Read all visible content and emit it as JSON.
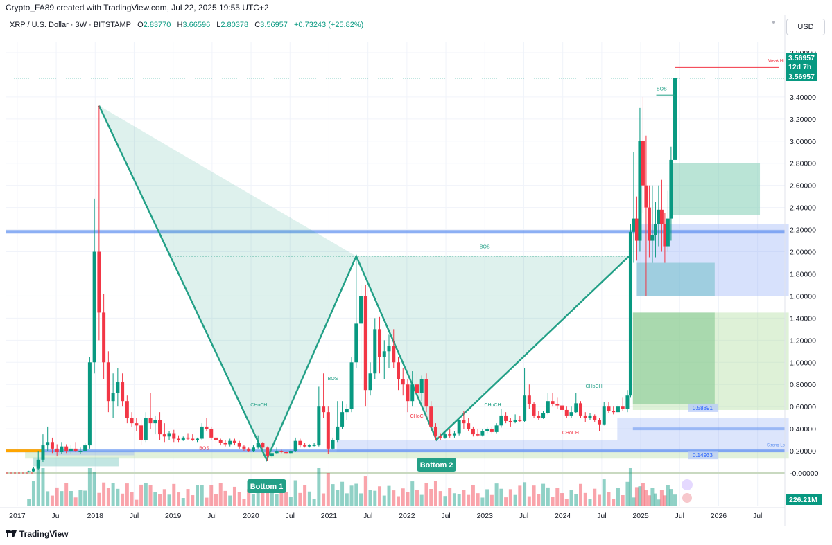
{
  "header": {
    "credit": "Crypto_FA89 created with TradingView.com, Jul 22, 2025 19:55 UTC+2",
    "symbol": "XRP / U.S. Dollar · 3W · BITSTAMP",
    "o_label": "O",
    "o_value": "2.83770",
    "h_label": "H",
    "h_value": "3.66596",
    "l_label": "L",
    "l_value": "2.80378",
    "c_label": "C",
    "c_value": "3.56957",
    "change": "+0.73243 (+25.82%)",
    "currency": "USD"
  },
  "footer": {
    "brand": "TradingView"
  },
  "colors": {
    "up": "#089981",
    "down": "#f23645",
    "bg": "#ffffff",
    "grid": "#f0f3fa",
    "blue_line": "#5b8def",
    "orange": "#ffa500",
    "pattern": "#23a087"
  },
  "chart_data": {
    "type": "candlestick",
    "title": "",
    "xlabel": "",
    "ylabel": "",
    "ylim": [
      -0.05,
      3.85
    ],
    "y_ticks": [
      "3.80000",
      "3.40000",
      "3.20000",
      "3.00000",
      "2.80000",
      "2.60000",
      "2.40000",
      "2.20000",
      "2.00000",
      "1.80000",
      "1.60000",
      "1.40000",
      "1.20000",
      "1.00000",
      "0.80000",
      "0.60000",
      "0.40000",
      "0.20000",
      "-0.00000"
    ],
    "y_tick_values": [
      3.8,
      3.4,
      3.2,
      3.0,
      2.8,
      2.6,
      2.4,
      2.2,
      2.0,
      1.8,
      1.6,
      1.4,
      1.2,
      1.0,
      0.8,
      0.6,
      0.4,
      0.2,
      0.0
    ],
    "x_ticks": [
      "2017",
      "Jul",
      "2018",
      "Jul",
      "2019",
      "Jul",
      "2020",
      "Jul",
      "2021",
      "Jul",
      "2022",
      "Jul",
      "2023",
      "Jul",
      "2024",
      "Jul",
      "2025",
      "Jul",
      "2026",
      "Jul"
    ],
    "x_tick_values": [
      2017.0,
      2017.5,
      2018.0,
      2018.5,
      2019.0,
      2019.5,
      2020.0,
      2020.5,
      2021.0,
      2021.5,
      2022.0,
      2022.5,
      2023.0,
      2023.5,
      2024.0,
      2024.5,
      2025.0,
      2025.5,
      2026.0,
      2026.5
    ],
    "xlim": [
      2016.85,
      2026.85
    ],
    "candles": [
      [
        2017.15,
        0.01,
        0.02,
        0.005,
        0.015
      ],
      [
        2017.21,
        0.015,
        0.05,
        0.01,
        0.04
      ],
      [
        2017.27,
        0.04,
        0.2,
        0.03,
        0.12
      ],
      [
        2017.33,
        0.12,
        0.35,
        0.1,
        0.25
      ],
      [
        2017.39,
        0.25,
        0.42,
        0.2,
        0.28
      ],
      [
        2017.45,
        0.28,
        0.32,
        0.18,
        0.22
      ],
      [
        2017.51,
        0.22,
        0.26,
        0.15,
        0.19
      ],
      [
        2017.57,
        0.19,
        0.28,
        0.17,
        0.24
      ],
      [
        2017.63,
        0.24,
        0.26,
        0.18,
        0.2
      ],
      [
        2017.69,
        0.2,
        0.25,
        0.17,
        0.22
      ],
      [
        2017.75,
        0.22,
        0.28,
        0.19,
        0.2
      ],
      [
        2017.81,
        0.2,
        0.23,
        0.17,
        0.2
      ],
      [
        2017.87,
        0.2,
        0.27,
        0.2,
        0.25
      ],
      [
        2017.93,
        0.25,
        1.05,
        0.22,
        1.0
      ],
      [
        2017.99,
        1.0,
        2.48,
        0.9,
        2.0
      ],
      [
        2018.05,
        2.0,
        3.32,
        1.2,
        1.45
      ],
      [
        2018.11,
        1.45,
        1.62,
        0.85,
        1.0
      ],
      [
        2018.17,
        1.0,
        1.1,
        0.55,
        0.65
      ],
      [
        2018.23,
        0.65,
        0.9,
        0.5,
        0.72
      ],
      [
        2018.29,
        0.72,
        0.95,
        0.6,
        0.82
      ],
      [
        2018.35,
        0.82,
        0.9,
        0.6,
        0.65
      ],
      [
        2018.41,
        0.65,
        0.7,
        0.45,
        0.5
      ],
      [
        2018.47,
        0.5,
        0.55,
        0.42,
        0.45
      ],
      [
        2018.53,
        0.45,
        0.5,
        0.38,
        0.43
      ],
      [
        2018.59,
        0.43,
        0.48,
        0.25,
        0.3
      ],
      [
        2018.65,
        0.3,
        0.55,
        0.28,
        0.5
      ],
      [
        2018.71,
        0.5,
        0.72,
        0.4,
        0.45
      ],
      [
        2018.77,
        0.45,
        0.52,
        0.35,
        0.48
      ],
      [
        2018.83,
        0.48,
        0.55,
        0.3,
        0.35
      ],
      [
        2018.89,
        0.35,
        0.45,
        0.28,
        0.33
      ],
      [
        2018.95,
        0.33,
        0.38,
        0.3,
        0.36
      ],
      [
        2019.01,
        0.36,
        0.39,
        0.28,
        0.31
      ],
      [
        2019.07,
        0.31,
        0.34,
        0.28,
        0.3
      ],
      [
        2019.13,
        0.3,
        0.33,
        0.29,
        0.32
      ],
      [
        2019.19,
        0.32,
        0.36,
        0.3,
        0.31
      ],
      [
        2019.25,
        0.31,
        0.35,
        0.29,
        0.3
      ],
      [
        2019.31,
        0.3,
        0.32,
        0.28,
        0.31
      ],
      [
        2019.37,
        0.31,
        0.45,
        0.3,
        0.42
      ],
      [
        2019.43,
        0.42,
        0.5,
        0.38,
        0.4
      ],
      [
        2019.49,
        0.4,
        0.42,
        0.3,
        0.32
      ],
      [
        2019.55,
        0.32,
        0.34,
        0.28,
        0.3
      ],
      [
        2019.61,
        0.3,
        0.31,
        0.25,
        0.27
      ],
      [
        2019.67,
        0.27,
        0.3,
        0.24,
        0.26
      ],
      [
        2019.73,
        0.26,
        0.31,
        0.24,
        0.29
      ],
      [
        2019.79,
        0.29,
        0.31,
        0.25,
        0.27
      ],
      [
        2019.85,
        0.27,
        0.29,
        0.22,
        0.24
      ],
      [
        2019.91,
        0.24,
        0.25,
        0.2,
        0.22
      ],
      [
        2019.97,
        0.22,
        0.23,
        0.19,
        0.2
      ],
      [
        2020.03,
        0.2,
        0.25,
        0.19,
        0.23
      ],
      [
        2020.09,
        0.23,
        0.34,
        0.22,
        0.27
      ],
      [
        2020.15,
        0.27,
        0.28,
        0.22,
        0.23
      ],
      [
        2020.21,
        0.23,
        0.24,
        0.11,
        0.15
      ],
      [
        2020.27,
        0.15,
        0.19,
        0.14,
        0.18
      ],
      [
        2020.33,
        0.18,
        0.23,
        0.17,
        0.2
      ],
      [
        2020.39,
        0.2,
        0.21,
        0.18,
        0.19
      ],
      [
        2020.45,
        0.19,
        0.2,
        0.17,
        0.18
      ],
      [
        2020.51,
        0.18,
        0.21,
        0.17,
        0.2
      ],
      [
        2020.57,
        0.2,
        0.32,
        0.19,
        0.29
      ],
      [
        2020.63,
        0.29,
        0.31,
        0.23,
        0.25
      ],
      [
        2020.69,
        0.25,
        0.27,
        0.23,
        0.24
      ],
      [
        2020.75,
        0.24,
        0.26,
        0.23,
        0.25
      ],
      [
        2020.81,
        0.25,
        0.27,
        0.24,
        0.25
      ],
      [
        2020.87,
        0.25,
        0.78,
        0.24,
        0.6
      ],
      [
        2020.93,
        0.6,
        0.9,
        0.5,
        0.55
      ],
      [
        2020.99,
        0.55,
        0.6,
        0.17,
        0.22
      ],
      [
        2021.05,
        0.22,
        0.32,
        0.21,
        0.3
      ],
      [
        2021.11,
        0.3,
        0.65,
        0.28,
        0.42
      ],
      [
        2021.17,
        0.42,
        0.65,
        0.4,
        0.55
      ],
      [
        2021.23,
        0.55,
        0.62,
        0.48,
        0.58
      ],
      [
        2021.29,
        0.58,
        1.05,
        0.55,
        1.0
      ],
      [
        2021.35,
        1.0,
        1.96,
        0.95,
        1.35
      ],
      [
        2021.41,
        1.35,
        1.7,
        0.85,
        1.6
      ],
      [
        2021.47,
        1.6,
        1.7,
        0.6,
        0.75
      ],
      [
        2021.53,
        0.75,
        1.0,
        0.7,
        0.9
      ],
      [
        2021.59,
        0.9,
        1.4,
        0.85,
        1.3
      ],
      [
        2021.65,
        1.3,
        1.41,
        0.9,
        1.05
      ],
      [
        2021.71,
        1.05,
        1.2,
        0.85,
        1.1
      ],
      [
        2021.77,
        1.1,
        1.25,
        0.95,
        1.15
      ],
      [
        2021.83,
        1.15,
        1.3,
        0.95,
        1.0
      ],
      [
        2021.89,
        1.0,
        1.05,
        0.75,
        0.85
      ],
      [
        2021.95,
        0.85,
        0.95,
        0.7,
        0.8
      ],
      [
        2022.01,
        0.8,
        0.85,
        0.55,
        0.65
      ],
      [
        2022.07,
        0.65,
        0.92,
        0.6,
        0.8
      ],
      [
        2022.13,
        0.8,
        0.9,
        0.65,
        0.72
      ],
      [
        2022.19,
        0.72,
        0.88,
        0.65,
        0.85
      ],
      [
        2022.25,
        0.85,
        0.9,
        0.55,
        0.6
      ],
      [
        2022.31,
        0.6,
        0.65,
        0.38,
        0.42
      ],
      [
        2022.37,
        0.42,
        0.45,
        0.3,
        0.33
      ],
      [
        2022.43,
        0.33,
        0.36,
        0.3,
        0.32
      ],
      [
        2022.49,
        0.32,
        0.38,
        0.31,
        0.35
      ],
      [
        2022.55,
        0.35,
        0.4,
        0.32,
        0.34
      ],
      [
        2022.61,
        0.34,
        0.38,
        0.32,
        0.36
      ],
      [
        2022.67,
        0.36,
        0.45,
        0.34,
        0.48
      ],
      [
        2022.73,
        0.48,
        0.56,
        0.4,
        0.45
      ],
      [
        2022.79,
        0.45,
        0.5,
        0.38,
        0.4
      ],
      [
        2022.85,
        0.4,
        0.42,
        0.33,
        0.35
      ],
      [
        2022.91,
        0.35,
        0.4,
        0.33,
        0.34
      ],
      [
        2022.97,
        0.34,
        0.4,
        0.33,
        0.38
      ],
      [
        2023.03,
        0.38,
        0.42,
        0.36,
        0.4
      ],
      [
        2023.09,
        0.4,
        0.42,
        0.36,
        0.37
      ],
      [
        2023.15,
        0.37,
        0.45,
        0.36,
        0.43
      ],
      [
        2023.21,
        0.43,
        0.58,
        0.41,
        0.52
      ],
      [
        2023.27,
        0.52,
        0.55,
        0.45,
        0.47
      ],
      [
        2023.33,
        0.47,
        0.5,
        0.42,
        0.46
      ],
      [
        2023.39,
        0.46,
        0.53,
        0.45,
        0.48
      ],
      [
        2023.45,
        0.48,
        0.52,
        0.46,
        0.47
      ],
      [
        2023.51,
        0.47,
        0.95,
        0.46,
        0.7
      ],
      [
        2023.57,
        0.7,
        0.8,
        0.58,
        0.62
      ],
      [
        2023.63,
        0.62,
        0.64,
        0.5,
        0.52
      ],
      [
        2023.69,
        0.52,
        0.56,
        0.48,
        0.5
      ],
      [
        2023.75,
        0.5,
        0.56,
        0.49,
        0.54
      ],
      [
        2023.81,
        0.54,
        0.72,
        0.53,
        0.65
      ],
      [
        2023.87,
        0.65,
        0.72,
        0.6,
        0.62
      ],
      [
        2023.93,
        0.62,
        0.68,
        0.58,
        0.61
      ],
      [
        2023.99,
        0.61,
        0.63,
        0.55,
        0.57
      ],
      [
        2024.05,
        0.57,
        0.6,
        0.5,
        0.52
      ],
      [
        2024.11,
        0.52,
        0.6,
        0.5,
        0.55
      ],
      [
        2024.17,
        0.55,
        0.72,
        0.54,
        0.63
      ],
      [
        2024.23,
        0.63,
        0.65,
        0.5,
        0.52
      ],
      [
        2024.29,
        0.52,
        0.55,
        0.46,
        0.5
      ],
      [
        2024.35,
        0.5,
        0.54,
        0.48,
        0.52
      ],
      [
        2024.41,
        0.52,
        0.53,
        0.46,
        0.48
      ],
      [
        2024.47,
        0.48,
        0.5,
        0.38,
        0.44
      ],
      [
        2024.53,
        0.44,
        0.64,
        0.43,
        0.6
      ],
      [
        2024.59,
        0.6,
        0.64,
        0.54,
        0.56
      ],
      [
        2024.65,
        0.56,
        0.6,
        0.53,
        0.55
      ],
      [
        2024.71,
        0.55,
        0.62,
        0.54,
        0.6
      ],
      [
        2024.77,
        0.6,
        0.68,
        0.56,
        0.58
      ],
      [
        2024.83,
        0.58,
        0.75,
        0.55,
        0.7
      ],
      [
        2024.87,
        0.7,
        2.25,
        0.68,
        2.18
      ],
      [
        2024.91,
        2.18,
        2.9,
        1.9,
        2.3
      ],
      [
        2024.95,
        2.3,
        2.5,
        1.92,
        2.1
      ],
      [
        2024.99,
        2.1,
        3.3,
        2.0,
        3.0
      ],
      [
        2025.03,
        3.0,
        3.4,
        2.35,
        2.6
      ],
      [
        2025.07,
        2.6,
        3.05,
        1.6,
        2.4
      ],
      [
        2025.11,
        2.4,
        2.6,
        1.95,
        2.1
      ],
      [
        2025.15,
        2.1,
        2.6,
        1.9,
        2.15
      ],
      [
        2025.19,
        2.15,
        2.45,
        1.95,
        2.25
      ],
      [
        2025.23,
        2.25,
        2.6,
        2.05,
        2.38
      ],
      [
        2025.27,
        2.38,
        2.65,
        2.0,
        2.25
      ],
      [
        2025.31,
        2.25,
        2.35,
        1.9,
        2.05
      ],
      [
        2025.35,
        2.05,
        2.55,
        2.0,
        2.3
      ],
      [
        2025.39,
        2.3,
        2.95,
        2.1,
        2.83
      ],
      [
        2025.44,
        2.83,
        3.66596,
        2.80378,
        3.56957
      ]
    ],
    "annotations": [
      {
        "text": "Bottom 1",
        "kind": "label"
      },
      {
        "text": "Bottom 2",
        "kind": "label"
      },
      {
        "text": "BOS"
      },
      {
        "text": "CHoCH"
      }
    ],
    "price_tags": [
      {
        "text": "3.56957",
        "value": 3.56957
      },
      {
        "text": "12d 7h",
        "value": 3.56957
      },
      {
        "text": "3.56957",
        "value": 3.56957
      }
    ],
    "small_tags": [
      {
        "text": "0.58891",
        "value": 0.58891
      },
      {
        "text": "0.14933",
        "value": 0.14933
      }
    ],
    "volume_tag": "226.21M",
    "weak_high_label": "Weak Hi",
    "strong_low_label": "Strong Lo"
  }
}
